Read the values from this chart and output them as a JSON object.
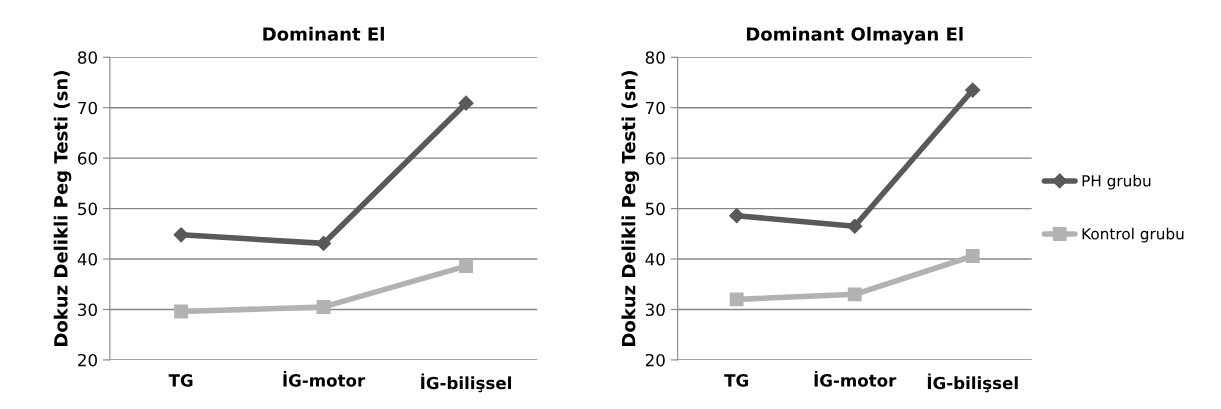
{
  "chart_data": [
    {
      "type": "line",
      "title": "Dominant El",
      "ylabel": "Dokuz Delikli Peg Testi (sn)",
      "categories": [
        "TG",
        "İG-motor",
        "İG-bilişsel"
      ],
      "ylim": [
        20,
        80
      ],
      "yticks": [
        20,
        30,
        40,
        50,
        60,
        70,
        80
      ],
      "grid": "y",
      "legend": false,
      "series": [
        {
          "color": "#595959",
          "marker": "diamond",
          "values": [
            44.8,
            43.1,
            70.9
          ]
        },
        {
          "color": "#b2b2b2",
          "marker": "square",
          "values": [
            29.6,
            30.5,
            38.6
          ]
        }
      ]
    },
    {
      "type": "line",
      "title": "Dominant Olmayan El",
      "ylabel": "Dokuz Delikli Peg Testi (sn)",
      "categories": [
        "TG",
        "İG-motor",
        "İG-bilişsel"
      ],
      "ylim": [
        20,
        80
      ],
      "yticks": [
        20,
        30,
        40,
        50,
        60,
        70,
        80
      ],
      "grid": "y",
      "legend": "right",
      "series": [
        {
          "name": "PH grubu",
          "color": "#595959",
          "marker": "diamond",
          "values": [
            48.6,
            46.5,
            73.5
          ]
        },
        {
          "name": "Kontrol grubu",
          "color": "#b2b2b2",
          "marker": "square",
          "values": [
            32.0,
            33.0,
            40.6
          ]
        }
      ]
    }
  ]
}
